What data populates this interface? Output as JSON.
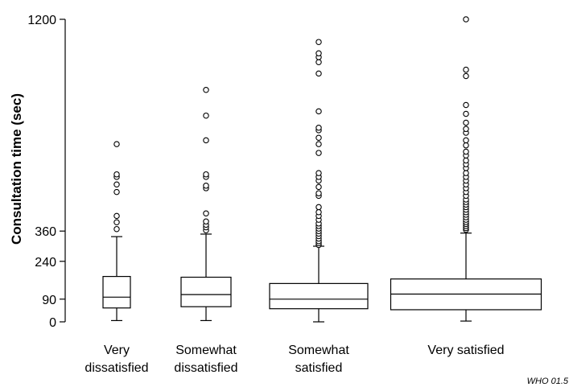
{
  "chart_data": {
    "type": "boxplot",
    "ylabel": "Consultation time (sec)",
    "ylim": [
      0,
      1200
    ],
    "yticks": [
      0,
      90,
      240,
      360,
      1200
    ],
    "categories": [
      [
        "Very",
        "dissatisfied"
      ],
      [
        "Somewhat",
        "dissatisfied"
      ],
      [
        "Somewhat",
        "satisfied"
      ],
      [
        "Very satisfied"
      ]
    ],
    "groups": [
      {
        "box_width_rel": 1.0,
        "whisker_low": 5,
        "q1": 55,
        "median": 98,
        "q3": 180,
        "whisker_high": 338,
        "outliers": [
          368,
          395,
          420,
          515,
          545,
          575,
          585,
          705
        ]
      },
      {
        "box_width_rel": 1.83,
        "whisker_low": 5,
        "q1": 60,
        "median": 108,
        "q3": 177,
        "whisker_high": 348,
        "outliers": [
          363,
          375,
          385,
          398,
          430,
          530,
          540,
          575,
          585,
          720,
          818,
          920
        ]
      },
      {
        "box_width_rel": 3.0,
        "whisker_low": 0,
        "q1": 52,
        "median": 90,
        "q3": 152,
        "whisker_high": 300,
        "outliers": [
          305,
          312,
          320,
          330,
          340,
          350,
          360,
          370,
          380,
          390,
          405,
          420,
          435,
          455,
          500,
          510,
          535,
          560,
          575,
          590,
          670,
          705,
          730,
          760,
          770,
          835,
          985,
          1030,
          1050,
          1065,
          1110
        ]
      },
      {
        "box_width_rel": 4.0,
        "whisker_low": 3,
        "q1": 48,
        "median": 110,
        "q3": 170,
        "whisker_high": 352,
        "outliers": [
          365,
          372,
          380,
          388,
          396,
          405,
          415,
          425,
          435,
          445,
          455,
          465,
          475,
          485,
          500,
          515,
          530,
          545,
          560,
          575,
          590,
          610,
          625,
          640,
          660,
          675,
          700,
          720,
          750,
          765,
          790,
          825,
          860,
          975,
          1000,
          1200
        ]
      }
    ]
  },
  "credit": "WHO 01.5"
}
